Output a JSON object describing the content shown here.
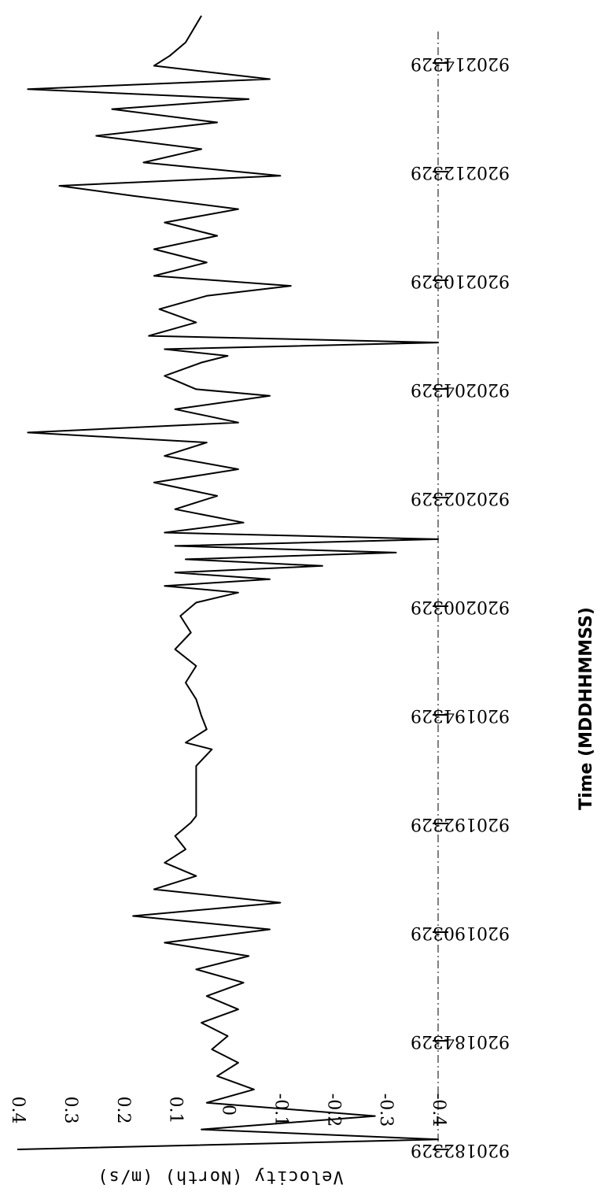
{
  "chart_data": {
    "type": "line",
    "title": "",
    "xlabel": "Time (MDDHHMMSS)",
    "ylabel": "Velocity (North) (m/s)",
    "xlim": [
      920182329,
      920214329
    ],
    "ylim": [
      -0.4,
      0.4
    ],
    "x_ticks": [
      "920182329",
      "920184329",
      "920190329",
      "920192329",
      "920194329",
      "920200329",
      "920202329",
      "920204329",
      "920210329",
      "920212329",
      "920214329"
    ],
    "y_ticks": [
      "0.4",
      "0.3",
      "0.2",
      "0.1",
      "0",
      "-0.1",
      "-0.2",
      "-0.3",
      "-0.4"
    ],
    "grid": false,
    "series": [
      {
        "values": [
          [
            0.0,
            0.4
          ],
          [
            0.3,
            -0.4
          ],
          [
            0.6,
            0.05
          ],
          [
            1.0,
            -0.28
          ],
          [
            1.4,
            0.04
          ],
          [
            1.8,
            -0.05
          ],
          [
            2.2,
            0.02
          ],
          [
            2.6,
            -0.02
          ],
          [
            3.0,
            0.03
          ],
          [
            3.4,
            0.0
          ],
          [
            3.8,
            0.05
          ],
          [
            4.2,
            -0.02
          ],
          [
            4.6,
            0.04
          ],
          [
            5.0,
            -0.03
          ],
          [
            5.4,
            0.06
          ],
          [
            5.8,
            -0.04
          ],
          [
            6.2,
            0.12
          ],
          [
            6.6,
            -0.08
          ],
          [
            7.0,
            0.18
          ],
          [
            7.4,
            -0.1
          ],
          [
            7.8,
            0.14
          ],
          [
            8.2,
            0.06
          ],
          [
            8.6,
            0.12
          ],
          [
            9.0,
            0.08
          ],
          [
            9.4,
            0.1
          ],
          [
            9.8,
            0.07
          ],
          [
            10.0,
            0.06
          ],
          [
            11.5,
            0.06
          ],
          [
            12.0,
            0.03
          ],
          [
            12.2,
            0.08
          ],
          [
            12.6,
            0.04
          ],
          [
            13.0,
            0.05
          ],
          [
            13.5,
            0.06
          ],
          [
            14.0,
            0.08
          ],
          [
            14.5,
            0.06
          ],
          [
            15.0,
            0.1
          ],
          [
            15.5,
            0.07
          ],
          [
            16.0,
            0.09
          ],
          [
            16.4,
            0.06
          ],
          [
            16.7,
            -0.02
          ],
          [
            16.9,
            0.12
          ],
          [
            17.1,
            -0.08
          ],
          [
            17.3,
            0.1
          ],
          [
            17.5,
            -0.18
          ],
          [
            17.7,
            0.08
          ],
          [
            17.9,
            -0.32
          ],
          [
            18.1,
            0.1
          ],
          [
            18.3,
            -0.4
          ],
          [
            18.5,
            0.12
          ],
          [
            18.8,
            -0.03
          ],
          [
            19.2,
            0.1
          ],
          [
            19.6,
            0.02
          ],
          [
            20.0,
            0.14
          ],
          [
            20.4,
            -0.02
          ],
          [
            20.8,
            0.12
          ],
          [
            21.2,
            0.04
          ],
          [
            21.5,
            0.38
          ],
          [
            21.8,
            -0.02
          ],
          [
            22.2,
            0.1
          ],
          [
            22.6,
            -0.08
          ],
          [
            22.8,
            0.06
          ],
          [
            23.2,
            0.12
          ],
          [
            23.6,
            0.05
          ],
          [
            23.8,
            0.0
          ],
          [
            24.0,
            0.12
          ],
          [
            24.2,
            -0.4
          ],
          [
            24.4,
            0.15
          ],
          [
            24.8,
            0.06
          ],
          [
            25.2,
            0.13
          ],
          [
            25.6,
            0.04
          ],
          [
            25.9,
            -0.12
          ],
          [
            26.2,
            0.14
          ],
          [
            26.6,
            0.04
          ],
          [
            27.0,
            0.14
          ],
          [
            27.4,
            0.02
          ],
          [
            27.8,
            0.12
          ],
          [
            28.2,
            -0.02
          ],
          [
            28.6,
            0.18
          ],
          [
            28.9,
            0.32
          ],
          [
            29.2,
            -0.1
          ],
          [
            29.6,
            0.16
          ],
          [
            30.0,
            0.05
          ],
          [
            30.4,
            0.25
          ],
          [
            30.8,
            0.02
          ],
          [
            31.2,
            0.22
          ],
          [
            31.5,
            -0.04
          ],
          [
            31.8,
            0.38
          ],
          [
            32.1,
            -0.08
          ],
          [
            32.5,
            0.14
          ],
          [
            32.8,
            0.11
          ],
          [
            33.2,
            0.08
          ],
          [
            34.0,
            0.05
          ]
        ]
      }
    ]
  }
}
